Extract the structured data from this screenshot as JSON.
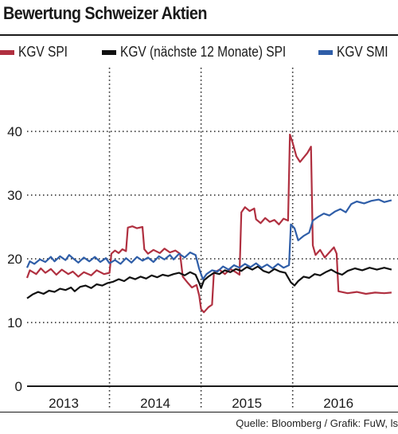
{
  "title": "Bewertung Schweizer Aktien",
  "source": "Quelle: Bloomberg / Grafik: FuW, ls",
  "colors": {
    "spi": "#b03040",
    "fwd": "#111111",
    "smi": "#2f5ea8",
    "grid": "#222222"
  },
  "legend": [
    {
      "label": "KGV SPI",
      "color": "#b03040"
    },
    {
      "label": "KGV (nächste 12 Monate) SPI",
      "color": "#111111"
    },
    {
      "label": "KGV SMI",
      "color": "#2f5ea8"
    }
  ],
  "chart_data": {
    "type": "line",
    "title": "Bewertung Schweizer Aktien",
    "xlabel": "",
    "ylabel": "",
    "xlim": [
      2012.6,
      2016.65
    ],
    "ylim": [
      0,
      50
    ],
    "yticks": [
      0,
      10,
      20,
      30,
      40
    ],
    "xticks": [
      {
        "label": "2013",
        "pos": 2013.0
      },
      {
        "label": "2014",
        "pos": 2014.0
      },
      {
        "label": "2015",
        "pos": 2015.0
      },
      {
        "label": "2016",
        "pos": 2016.0
      }
    ],
    "year_dividers": [
      2012.5,
      2013.5,
      2014.5,
      2015.5
    ],
    "grid": true,
    "legend_position": "top",
    "series": [
      {
        "name": "KGV SPI",
        "color": "#b03040",
        "points": [
          [
            2012.6,
            17.0
          ],
          [
            2012.63,
            18.2
          ],
          [
            2012.7,
            17.6
          ],
          [
            2012.75,
            18.5
          ],
          [
            2012.8,
            17.8
          ],
          [
            2012.86,
            18.4
          ],
          [
            2012.92,
            17.5
          ],
          [
            2012.98,
            18.3
          ],
          [
            2013.05,
            17.6
          ],
          [
            2013.1,
            18.0
          ],
          [
            2013.16,
            17.2
          ],
          [
            2013.22,
            17.9
          ],
          [
            2013.3,
            17.4
          ],
          [
            2013.36,
            18.2
          ],
          [
            2013.44,
            17.6
          ],
          [
            2013.5,
            17.8
          ],
          [
            2013.52,
            20.8
          ],
          [
            2013.56,
            21.3
          ],
          [
            2013.6,
            20.9
          ],
          [
            2013.64,
            21.5
          ],
          [
            2013.68,
            21.2
          ],
          [
            2013.7,
            24.9
          ],
          [
            2013.75,
            25.1
          ],
          [
            2013.8,
            24.8
          ],
          [
            2013.86,
            25.0
          ],
          [
            2013.88,
            21.5
          ],
          [
            2013.92,
            20.8
          ],
          [
            2013.98,
            21.4
          ],
          [
            2014.05,
            20.9
          ],
          [
            2014.1,
            21.6
          ],
          [
            2014.16,
            21.0
          ],
          [
            2014.22,
            21.3
          ],
          [
            2014.27,
            20.8
          ],
          [
            2014.3,
            17.2
          ],
          [
            2014.35,
            16.3
          ],
          [
            2014.4,
            15.5
          ],
          [
            2014.45,
            15.9
          ],
          [
            2014.48,
            14.2
          ],
          [
            2014.5,
            12.1
          ],
          [
            2014.53,
            11.6
          ],
          [
            2014.58,
            12.4
          ],
          [
            2014.62,
            12.8
          ],
          [
            2014.64,
            17.8
          ],
          [
            2014.7,
            18.3
          ],
          [
            2014.76,
            17.6
          ],
          [
            2014.82,
            18.4
          ],
          [
            2014.88,
            17.9
          ],
          [
            2014.92,
            17.5
          ],
          [
            2014.94,
            27.3
          ],
          [
            2014.98,
            28.1
          ],
          [
            2015.03,
            27.5
          ],
          [
            2015.08,
            27.9
          ],
          [
            2015.1,
            26.2
          ],
          [
            2015.15,
            25.6
          ],
          [
            2015.2,
            26.4
          ],
          [
            2015.25,
            25.8
          ],
          [
            2015.3,
            26.1
          ],
          [
            2015.35,
            25.4
          ],
          [
            2015.4,
            26.3
          ],
          [
            2015.45,
            26.0
          ],
          [
            2015.47,
            39.5
          ],
          [
            2015.5,
            38.2
          ],
          [
            2015.54,
            36.1
          ],
          [
            2015.58,
            35.2
          ],
          [
            2015.62,
            35.9
          ],
          [
            2015.66,
            36.6
          ],
          [
            2015.7,
            37.6
          ],
          [
            2015.72,
            22.1
          ],
          [
            2015.75,
            20.6
          ],
          [
            2015.8,
            21.4
          ],
          [
            2015.85,
            20.2
          ],
          [
            2015.9,
            21.0
          ],
          [
            2015.95,
            21.8
          ],
          [
            2015.98,
            20.8
          ],
          [
            2016.0,
            14.9
          ],
          [
            2016.1,
            14.6
          ],
          [
            2016.2,
            14.8
          ],
          [
            2016.3,
            14.5
          ],
          [
            2016.4,
            14.7
          ],
          [
            2016.5,
            14.6
          ],
          [
            2016.58,
            14.7
          ]
        ]
      },
      {
        "name": "KGV (nächste 12 Monate) SPI",
        "color": "#111111",
        "points": [
          [
            2012.6,
            13.8
          ],
          [
            2012.66,
            14.4
          ],
          [
            2012.72,
            14.8
          ],
          [
            2012.78,
            14.5
          ],
          [
            2012.84,
            15.0
          ],
          [
            2012.9,
            14.8
          ],
          [
            2012.96,
            15.3
          ],
          [
            2013.02,
            15.1
          ],
          [
            2013.08,
            15.5
          ],
          [
            2013.12,
            14.9
          ],
          [
            2013.18,
            15.6
          ],
          [
            2013.24,
            15.8
          ],
          [
            2013.3,
            15.4
          ],
          [
            2013.36,
            16.0
          ],
          [
            2013.42,
            15.8
          ],
          [
            2013.48,
            16.2
          ],
          [
            2013.54,
            16.4
          ],
          [
            2013.6,
            16.8
          ],
          [
            2013.66,
            16.5
          ],
          [
            2013.72,
            17.1
          ],
          [
            2013.78,
            16.8
          ],
          [
            2013.84,
            17.2
          ],
          [
            2013.9,
            16.9
          ],
          [
            2013.96,
            17.4
          ],
          [
            2014.02,
            17.1
          ],
          [
            2014.08,
            17.5
          ],
          [
            2014.14,
            17.3
          ],
          [
            2014.2,
            17.6
          ],
          [
            2014.26,
            17.8
          ],
          [
            2014.32,
            17.4
          ],
          [
            2014.38,
            17.9
          ],
          [
            2014.44,
            17.5
          ],
          [
            2014.48,
            16.2
          ],
          [
            2014.5,
            15.4
          ],
          [
            2014.53,
            16.6
          ],
          [
            2014.58,
            17.2
          ],
          [
            2014.64,
            17.8
          ],
          [
            2014.7,
            17.6
          ],
          [
            2014.76,
            18.2
          ],
          [
            2014.82,
            17.9
          ],
          [
            2014.88,
            18.4
          ],
          [
            2014.94,
            18.1
          ],
          [
            2015.0,
            18.7
          ],
          [
            2015.06,
            18.3
          ],
          [
            2015.12,
            18.8
          ],
          [
            2015.18,
            18.1
          ],
          [
            2015.24,
            17.8
          ],
          [
            2015.3,
            18.4
          ],
          [
            2015.36,
            18.0
          ],
          [
            2015.42,
            17.8
          ],
          [
            2015.48,
            16.3
          ],
          [
            2015.52,
            15.8
          ],
          [
            2015.56,
            16.5
          ],
          [
            2015.62,
            17.2
          ],
          [
            2015.68,
            17.0
          ],
          [
            2015.74,
            17.6
          ],
          [
            2015.8,
            17.4
          ],
          [
            2015.86,
            17.9
          ],
          [
            2015.92,
            18.3
          ],
          [
            2015.98,
            17.8
          ],
          [
            2016.04,
            17.5
          ],
          [
            2016.1,
            18.1
          ],
          [
            2016.18,
            18.5
          ],
          [
            2016.26,
            18.2
          ],
          [
            2016.34,
            18.6
          ],
          [
            2016.42,
            18.3
          ],
          [
            2016.5,
            18.6
          ],
          [
            2016.58,
            18.3
          ]
        ]
      },
      {
        "name": "KGV SMI",
        "color": "#2f5ea8",
        "points": [
          [
            2012.6,
            18.6
          ],
          [
            2012.63,
            19.6
          ],
          [
            2012.68,
            19.2
          ],
          [
            2012.74,
            19.9
          ],
          [
            2012.8,
            19.5
          ],
          [
            2012.86,
            20.3
          ],
          [
            2012.9,
            19.6
          ],
          [
            2012.96,
            20.4
          ],
          [
            2013.02,
            19.8
          ],
          [
            2013.06,
            20.6
          ],
          [
            2013.1,
            20.1
          ],
          [
            2013.16,
            19.4
          ],
          [
            2013.22,
            20.2
          ],
          [
            2013.28,
            19.6
          ],
          [
            2013.34,
            20.3
          ],
          [
            2013.4,
            19.5
          ],
          [
            2013.46,
            20.1
          ],
          [
            2013.5,
            19.3
          ],
          [
            2013.56,
            19.8
          ],
          [
            2013.62,
            19.2
          ],
          [
            2013.68,
            20.1
          ],
          [
            2013.74,
            19.4
          ],
          [
            2013.8,
            20.3
          ],
          [
            2013.86,
            19.7
          ],
          [
            2013.92,
            20.2
          ],
          [
            2013.98,
            19.5
          ],
          [
            2014.04,
            20.4
          ],
          [
            2014.1,
            19.9
          ],
          [
            2014.16,
            20.6
          ],
          [
            2014.2,
            19.9
          ],
          [
            2014.26,
            20.8
          ],
          [
            2014.32,
            20.2
          ],
          [
            2014.38,
            21.0
          ],
          [
            2014.44,
            20.6
          ],
          [
            2014.48,
            18.4
          ],
          [
            2014.52,
            16.8
          ],
          [
            2014.56,
            17.6
          ],
          [
            2014.62,
            18.2
          ],
          [
            2014.68,
            18.0
          ],
          [
            2014.74,
            18.8
          ],
          [
            2014.8,
            18.3
          ],
          [
            2014.86,
            19.0
          ],
          [
            2014.92,
            18.6
          ],
          [
            2014.98,
            19.2
          ],
          [
            2015.04,
            18.7
          ],
          [
            2015.1,
            19.3
          ],
          [
            2015.16,
            18.6
          ],
          [
            2015.22,
            19.1
          ],
          [
            2015.28,
            18.5
          ],
          [
            2015.34,
            19.2
          ],
          [
            2015.4,
            18.6
          ],
          [
            2015.46,
            19.0
          ],
          [
            2015.48,
            25.4
          ],
          [
            2015.52,
            24.8
          ],
          [
            2015.56,
            22.9
          ],
          [
            2015.62,
            23.6
          ],
          [
            2015.68,
            24.1
          ],
          [
            2015.72,
            26.0
          ],
          [
            2015.78,
            26.6
          ],
          [
            2015.84,
            27.1
          ],
          [
            2015.9,
            26.8
          ],
          [
            2015.96,
            27.4
          ],
          [
            2016.02,
            27.8
          ],
          [
            2016.08,
            27.3
          ],
          [
            2016.14,
            28.6
          ],
          [
            2016.2,
            29.0
          ],
          [
            2016.28,
            28.7
          ],
          [
            2016.36,
            29.1
          ],
          [
            2016.44,
            29.3
          ],
          [
            2016.5,
            28.9
          ],
          [
            2016.58,
            29.2
          ]
        ]
      }
    ]
  }
}
